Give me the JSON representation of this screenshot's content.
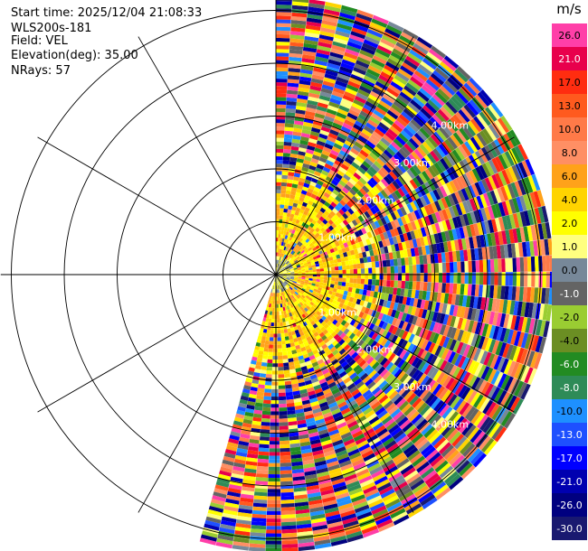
{
  "info": {
    "start_time": "Start time: 2025/12/04 21:08:33",
    "station": "WLS200s-181",
    "field": "Field: VEL",
    "elevation": "Elevation(deg): 35.00",
    "nrays": "NRays: 57"
  },
  "chart_data": {
    "type": "heatmap",
    "projection": "polar-ppi",
    "title": "",
    "field": "VEL",
    "unit": "m/s",
    "start_time": "2025/12/04 21:08:33",
    "station": "WLS200s-181",
    "elevation_deg": 35.0,
    "nrays": 57,
    "azimuth_coverage_deg": [
      0,
      196
    ],
    "max_range_km": 5.2,
    "range_ring_labels": [
      "1.00km",
      "2.00km",
      "3.00km",
      "4.00km"
    ],
    "range_rings_km": [
      1,
      2,
      3,
      4,
      5
    ],
    "spokes_deg": [
      0,
      30,
      60,
      90,
      120,
      150,
      180,
      210,
      240,
      270,
      300,
      330
    ],
    "colorbar": {
      "title": "m/s",
      "levels": [
        {
          "label": "26.0",
          "color": "#ff3fa8"
        },
        {
          "label": "21.0",
          "color": "#e8004c"
        },
        {
          "label": "17.0",
          "color": "#ff2d10"
        },
        {
          "label": "13.0",
          "color": "#ff5a1e"
        },
        {
          "label": "10.0",
          "color": "#ff7a48"
        },
        {
          "label": "8.0",
          "color": "#ff8f64"
        },
        {
          "label": "6.0",
          "color": "#ffa21a"
        },
        {
          "label": "4.0",
          "color": "#ffd400"
        },
        {
          "label": "2.0",
          "color": "#ffff00"
        },
        {
          "label": "1.0",
          "color": "#ffff80"
        },
        {
          "label": "0.0",
          "color": "#778899"
        },
        {
          "label": "-1.0",
          "color": "#646464"
        },
        {
          "label": "-2.0",
          "color": "#9acd32"
        },
        {
          "label": "-4.0",
          "color": "#6b8e23"
        },
        {
          "label": "-6.0",
          "color": "#228b22"
        },
        {
          "label": "-8.0",
          "color": "#2e8b57"
        },
        {
          "label": "-10.0",
          "color": "#1e90ff"
        },
        {
          "label": "-13.0",
          "color": "#1e50ff"
        },
        {
          "label": "-17.0",
          "color": "#0000ff"
        },
        {
          "label": "-21.0",
          "color": "#0000b0"
        },
        {
          "label": "-26.0",
          "color": "#000080"
        },
        {
          "label": "-30.0",
          "color": "#191970"
        }
      ]
    }
  }
}
